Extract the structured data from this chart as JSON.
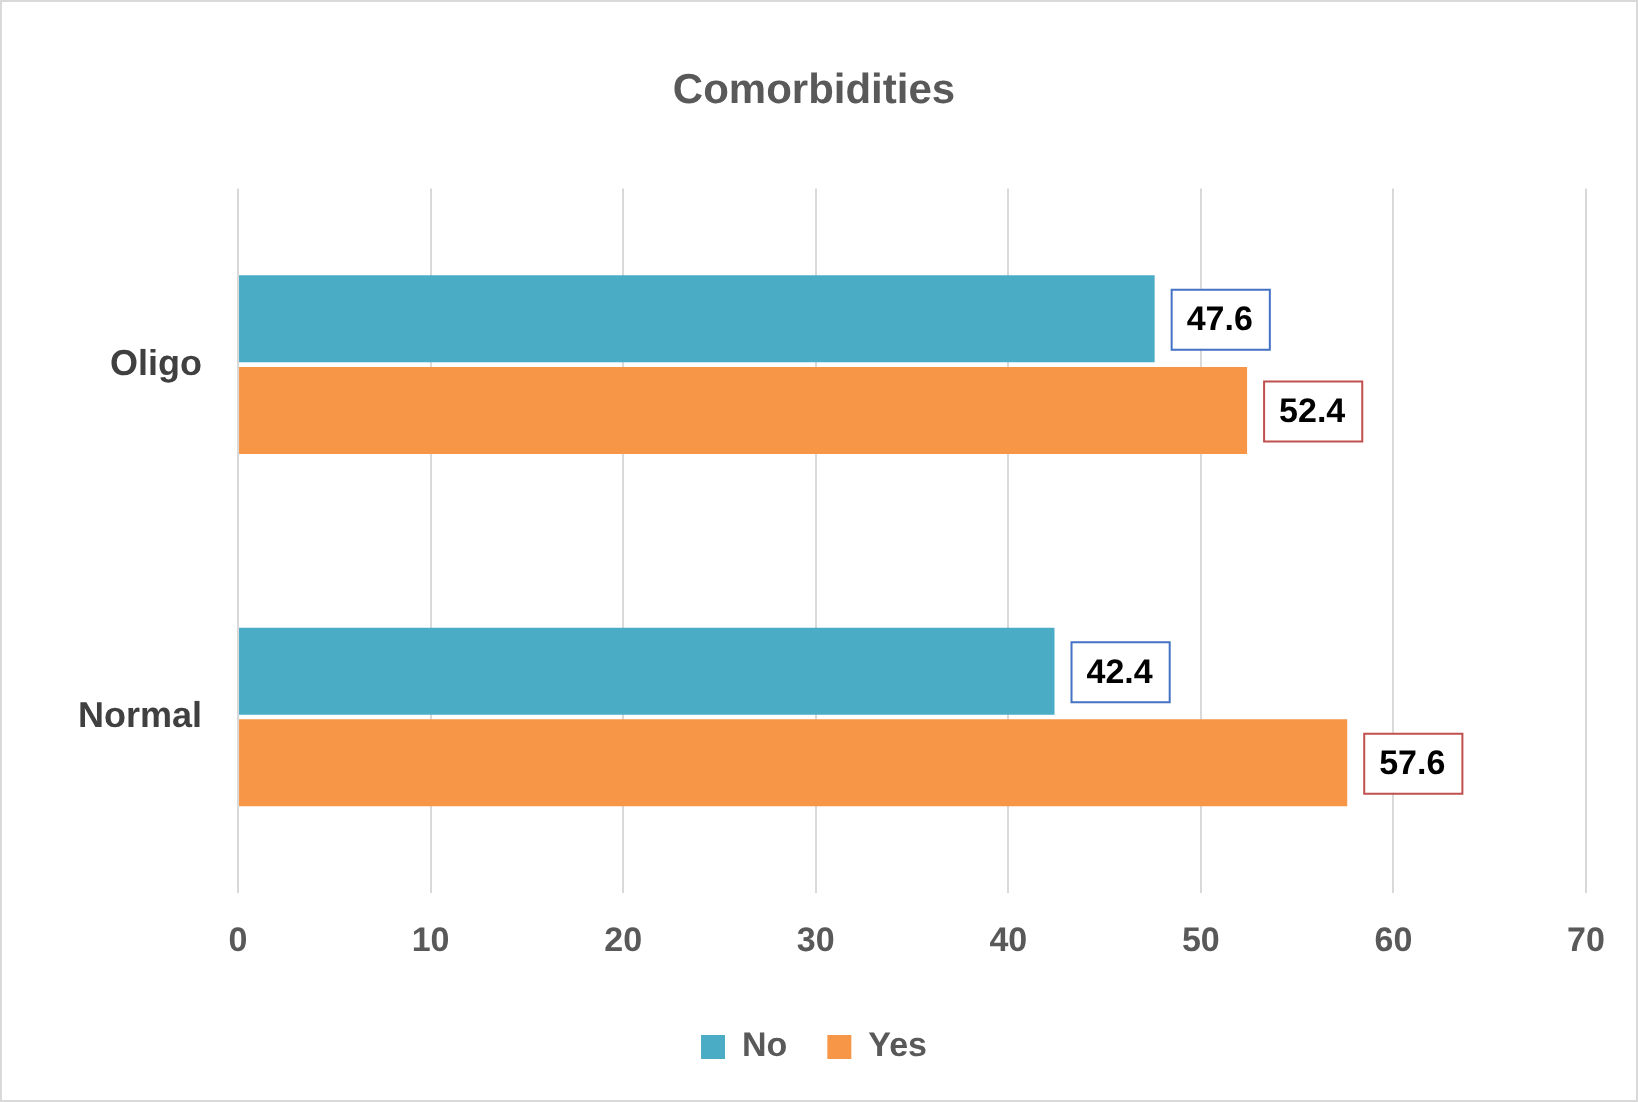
{
  "chart_data": {
    "type": "bar",
    "orientation": "horizontal",
    "title": "Comorbidities",
    "categories": [
      "Oligo",
      "Normal"
    ],
    "series": [
      {
        "name": "No",
        "color": "#4bacc6",
        "values": [
          47.6,
          42.4
        ]
      },
      {
        "name": "Yes",
        "color": "#f79646",
        "values": [
          52.4,
          57.6
        ]
      }
    ],
    "xlim": [
      0,
      70
    ],
    "xticks": [
      0,
      10,
      20,
      30,
      40,
      50,
      60,
      70
    ],
    "grid": "x",
    "legend": "bottom",
    "data_labels": true
  }
}
